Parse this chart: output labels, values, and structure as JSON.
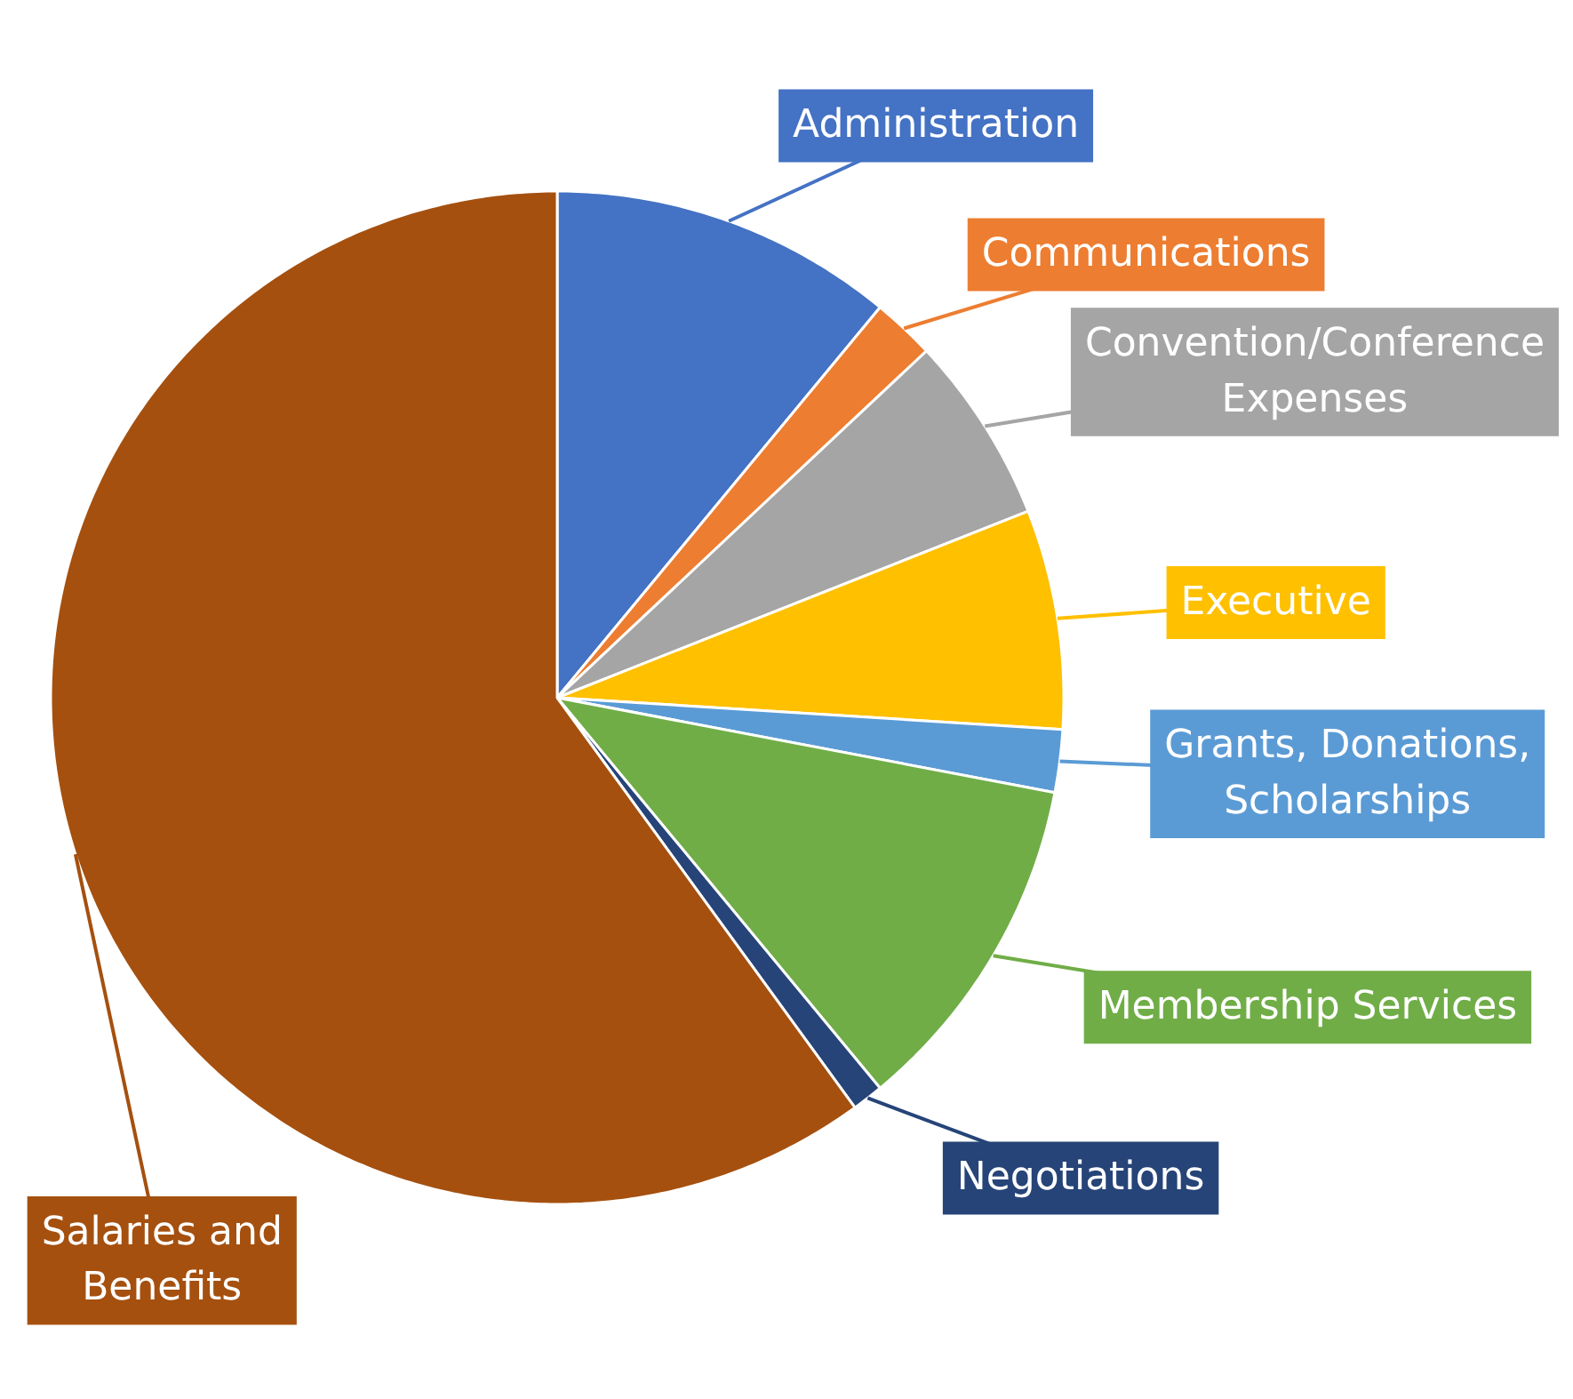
{
  "chart_data": {
    "type": "pie",
    "categories": [
      "Administration",
      "Communications",
      "Convention/Conference Expenses",
      "Executive",
      "Grants, Donations, Scholarships",
      "Membership Services",
      "Negotiations",
      "Salaries and Benefits"
    ],
    "values": [
      11,
      2,
      6,
      7,
      2,
      11,
      1,
      60
    ],
    "colors": [
      "#4472c4",
      "#ed7d31",
      "#a5a5a5",
      "#ffc000",
      "#5b9bd5",
      "#70ad47",
      "#264478",
      "#a5500f"
    ]
  }
}
